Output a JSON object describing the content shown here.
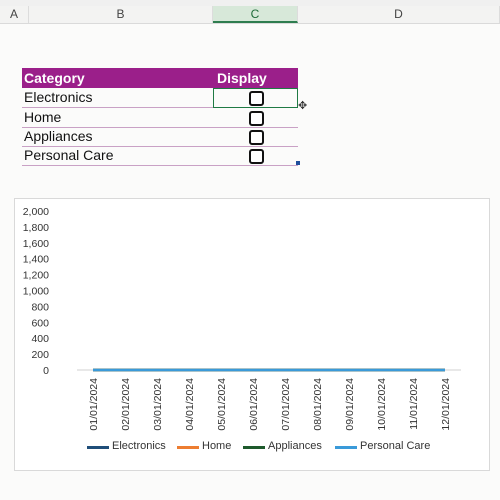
{
  "sheet": {
    "columns": [
      "A",
      "B",
      "C",
      "D"
    ],
    "selected_column": "C"
  },
  "table": {
    "headers": {
      "category": "Category",
      "display": "Display"
    },
    "rows": [
      {
        "label": "Electronics",
        "checked": false
      },
      {
        "label": "Home",
        "checked": false
      },
      {
        "label": "Appliances",
        "checked": false
      },
      {
        "label": "Personal Care",
        "checked": false
      }
    ]
  },
  "chart_data": {
    "type": "line",
    "x": [
      "01/01/2024",
      "02/01/2024",
      "03/01/2024",
      "04/01/2024",
      "05/01/2024",
      "06/01/2024",
      "07/01/2024",
      "08/01/2024",
      "09/01/2024",
      "10/01/2024",
      "11/01/2024",
      "12/01/2024"
    ],
    "ylim": [
      0,
      2000
    ],
    "yticks": [
      "2,000",
      "1,800",
      "1,600",
      "1,400",
      "1,200",
      "1,000",
      "800",
      "600",
      "400",
      "200",
      "0"
    ],
    "series": [
      {
        "name": "Electronics",
        "color": "#1f4e79",
        "values": [
          0,
          0,
          0,
          0,
          0,
          0,
          0,
          0,
          0,
          0,
          0,
          0
        ]
      },
      {
        "name": "Home",
        "color": "#ed7d31",
        "values": [
          0,
          0,
          0,
          0,
          0,
          0,
          0,
          0,
          0,
          0,
          0,
          0
        ]
      },
      {
        "name": "Appliances",
        "color": "#1e5a2c",
        "values": [
          0,
          0,
          0,
          0,
          0,
          0,
          0,
          0,
          0,
          0,
          0,
          0
        ]
      },
      {
        "name": "Personal Care",
        "color": "#3a9ad9",
        "values": [
          0,
          0,
          0,
          0,
          0,
          0,
          0,
          0,
          0,
          0,
          0,
          0
        ]
      }
    ],
    "legend_position": "bottom"
  }
}
